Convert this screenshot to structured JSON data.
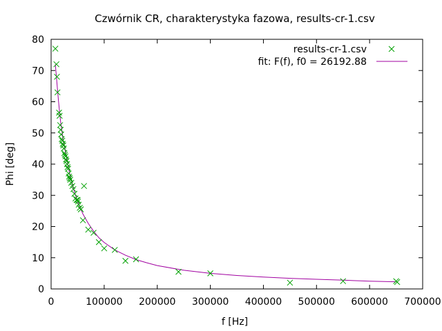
{
  "chart_data": {
    "type": "scatter",
    "title": "Czwórnik CR, charakterystyka fazowa, results-cr-1.csv",
    "xlabel": "f [Hz]",
    "ylabel": "Phi [deg]",
    "xlim": [
      0,
      700000
    ],
    "ylim": [
      0,
      80
    ],
    "x_ticks": [
      0,
      100000,
      200000,
      300000,
      400000,
      500000,
      600000,
      700000
    ],
    "y_ticks": [
      0,
      10,
      20,
      30,
      40,
      50,
      60,
      70,
      80
    ],
    "grid": false,
    "legend_position": "top-right",
    "series": [
      {
        "name": "results-cr-1.csv",
        "kind": "points",
        "marker": "x",
        "color": "#00a000",
        "x": [
          8000,
          10000,
          11000,
          12000,
          15000,
          16000,
          17000,
          18000,
          19000,
          20000,
          21000,
          22000,
          23000,
          24000,
          25000,
          26000,
          27000,
          28000,
          29000,
          30000,
          31000,
          32000,
          33000,
          34000,
          35000,
          36000,
          38000,
          40000,
          42000,
          44000,
          46000,
          48000,
          50000,
          50500,
          52000,
          54000,
          56000,
          60000,
          62000,
          70000,
          80000,
          90000,
          100000,
          120000,
          140000,
          160000,
          240000,
          300000,
          450000,
          550000,
          650000,
          652000
        ],
        "y": [
          77,
          72,
          68,
          63,
          56.5,
          55.5,
          52.5,
          51,
          49.5,
          48,
          47.5,
          46.5,
          46,
          45,
          43.5,
          43,
          42.5,
          41.5,
          41,
          40,
          39,
          38.5,
          37,
          36,
          35.5,
          35,
          34,
          33,
          32,
          30.5,
          29,
          28.5,
          28.5,
          28,
          27,
          26,
          25.5,
          22,
          33,
          19,
          18,
          15,
          13,
          12.5,
          9,
          9.5,
          5.5,
          5,
          2,
          2.5,
          2.5,
          2.2
        ]
      },
      {
        "name": "fit: F(f), f0 = 26192.88",
        "kind": "line",
        "color": "#a000a0",
        "x": [
          8000,
          10000,
          12000,
          14000,
          16000,
          18000,
          20000,
          22000,
          24000,
          26000,
          28000,
          30000,
          32000,
          35000,
          38000,
          42000,
          46000,
          50000,
          55000,
          60000,
          70000,
          80000,
          90000,
          100000,
          120000,
          140000,
          160000,
          180000,
          200000,
          250000,
          300000,
          350000,
          400000,
          450000,
          500000,
          550000,
          600000,
          650000
        ],
        "y": [
          72.0,
          68.0,
          64.0,
          60.0,
          56.6,
          53.5,
          51.0,
          48.5,
          46.5,
          44.9,
          42.9,
          41.2,
          39.3,
          37.0,
          34.8,
          32.2,
          30.0,
          28.0,
          26.0,
          24.0,
          21.0,
          18.5,
          16.4,
          14.9,
          12.5,
          10.8,
          9.4,
          8.4,
          7.5,
          6.0,
          5.0,
          4.3,
          3.8,
          3.4,
          3.1,
          2.8,
          2.5,
          2.3
        ]
      }
    ]
  }
}
